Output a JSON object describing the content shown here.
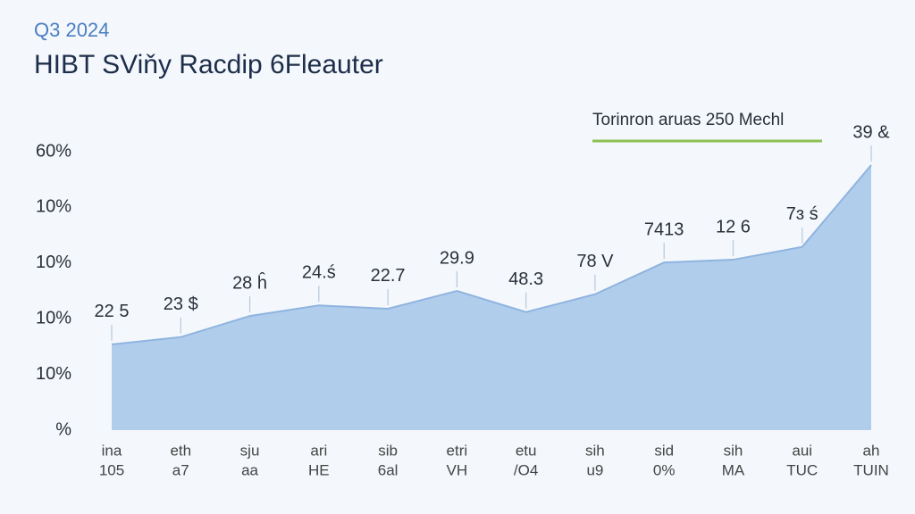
{
  "chart_data": {
    "type": "area",
    "subtitle": "Q3 2024",
    "title": "HIBT SViňy Racdip 6Fleauter",
    "legend": {
      "label": "Torinron aruas 250 Mechl",
      "color": "#8cc152"
    },
    "categories": [
      [
        "ina",
        "105"
      ],
      [
        "eth",
        "a7"
      ],
      [
        "sju",
        "aa"
      ],
      [
        "ari",
        "HE"
      ],
      [
        "sib",
        "6al"
      ],
      [
        "etri",
        "VH"
      ],
      [
        "etu",
        "/O4"
      ],
      [
        "sih",
        "u9"
      ],
      [
        "sid",
        "0%"
      ],
      [
        "sih",
        "MA"
      ],
      [
        "aui",
        "TUC"
      ],
      [
        "ah",
        "TUIN"
      ]
    ],
    "series": [
      {
        "color": "#a9c8ea",
        "values": [
          1.54,
          1.67,
          2.05,
          2.24,
          2.18,
          2.5,
          2.12,
          2.44,
          3.01,
          3.06,
          3.29,
          4.76
        ]
      }
    ],
    "annotations": [
      "22 5",
      "23 $",
      "28 ĥ",
      "24.ś",
      "22.7",
      "29.9",
      "48.3",
      "78 V",
      "7413",
      "12 6",
      "7ɜ ś",
      "39 &"
    ],
    "ylim": [
      0,
      5
    ],
    "yticks": [
      {
        "value": 0,
        "label": "%"
      },
      {
        "value": 1,
        "label": "10%"
      },
      {
        "value": 2,
        "label": "10%"
      },
      {
        "value": 3,
        "label": "10%"
      },
      {
        "value": 4,
        "label": "10%"
      },
      {
        "value": 5,
        "label": "60%"
      }
    ]
  }
}
